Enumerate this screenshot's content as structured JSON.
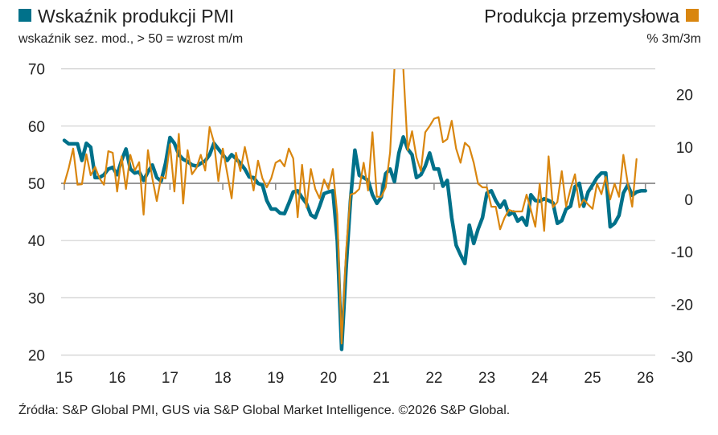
{
  "chart_data": {
    "type": "line",
    "legend_left": {
      "label": "Wskaźnik produkcji PMI",
      "sublabel": "wskaźnik sez. mod., > 50 = wzrost m/m"
    },
    "legend_right": {
      "label": "Produkcja przemysłowa",
      "sublabel": "% 3m/3m"
    },
    "x_ticks": [
      "15",
      "16",
      "17",
      "18",
      "19",
      "20",
      "21",
      "22",
      "23",
      "24",
      "25",
      "26"
    ],
    "x_range": [
      2015,
      2026.25
    ],
    "y_left": {
      "ticks": [
        20,
        30,
        40,
        50,
        60,
        70
      ],
      "range": [
        20,
        70
      ],
      "reference": 50
    },
    "y_right": {
      "ticks": [
        -30,
        -20,
        -10,
        0,
        10,
        20
      ],
      "range": [
        -29.8,
        24.8
      ]
    },
    "grid": true,
    "colors": {
      "pmi": "#00718a",
      "ip": "#d9860f",
      "grid": "#d0d0d0",
      "ref": "#888888"
    },
    "series": [
      {
        "name": "Wskaźnik produkcji PMI",
        "axis": "left",
        "start": "2015-01",
        "frequency": "monthly",
        "values": [
          57.5,
          56.9,
          56.9,
          56.9,
          54,
          57,
          56.3,
          51,
          51,
          51.5,
          52.5,
          52.8,
          51.5,
          54,
          56,
          52.5,
          51.8,
          52,
          50.5,
          52,
          53.2,
          51,
          50.4,
          53.5,
          58,
          57,
          55,
          54.2,
          53.8,
          53.2,
          53,
          53.5,
          53.9,
          55,
          57,
          56,
          55,
          54,
          55,
          54.3,
          53.5,
          52.5,
          51.1,
          51,
          50,
          49.7,
          47,
          45.5,
          45.5,
          44.8,
          44.7,
          46.5,
          48.5,
          48.7,
          47.5,
          46.5,
          44.5,
          44,
          46,
          48.2,
          48.5,
          48.7,
          40,
          21,
          35,
          47,
          55.8,
          51.4,
          51,
          50.5,
          48,
          46.5,
          47.6,
          51.7,
          52.5,
          50.3,
          55.3,
          58.1,
          56,
          55,
          51,
          51.5,
          53,
          55.3,
          52.5,
          52.5,
          49.5,
          50.5,
          44,
          39.2,
          37.5,
          36,
          42.7,
          39.5,
          42,
          44,
          48.3,
          48.7,
          47,
          45.8,
          46.9,
          44.5,
          45,
          43.4,
          44,
          42.7,
          48,
          47,
          46.9,
          47.3,
          47,
          46.6,
          43,
          43.5,
          45.5,
          46,
          49.4,
          50,
          46,
          48.5,
          49.7,
          51,
          51.8,
          51.8,
          42.4,
          43,
          44.4,
          48.3,
          49.7,
          47.9,
          48.5,
          48.7,
          48.7
        ]
      },
      {
        "name": "Produkcja przemysłowa",
        "axis": "right",
        "start": "2015-01",
        "frequency": "monthly",
        "values": [
          3,
          6,
          9.7,
          2.8,
          2.9,
          8.6,
          4.6,
          6.2,
          4,
          2.8,
          9.2,
          8.9,
          1.5,
          8.2,
          2,
          8.5,
          5.5,
          7.1,
          -2.9,
          9.4,
          4,
          -0.3,
          4.3,
          4,
          10.5,
          1.5,
          12.5,
          -0.8,
          9.4,
          4.8,
          6,
          8.5,
          5.5,
          13.8,
          10.9,
          3.5,
          9.7,
          5,
          0.2,
          8.9,
          5.4,
          10,
          6,
          1.7,
          7.4,
          4,
          2.3,
          4,
          7,
          7.5,
          6.3,
          9.7,
          7.8,
          -3.4,
          6.6,
          -1.5,
          5.8,
          2,
          0.2,
          3.8,
          2,
          5.8,
          -2.9,
          -27.5,
          -10,
          0.9,
          1.2,
          2,
          7,
          1.7,
          12.8,
          0.5,
          0.5,
          2.3,
          9,
          25,
          45,
          25,
          9.4,
          13,
          8,
          5.4,
          12.8,
          14,
          15.4,
          15.7,
          10.9,
          11.5,
          15,
          9.7,
          7,
          10.8,
          10,
          7,
          3,
          2.3,
          2.3,
          -1.4,
          -1.4,
          -5.7,
          -3.5,
          -2,
          -2.3,
          -2.3,
          -2.3,
          0.9,
          -2,
          -5.2,
          3,
          -6,
          8.2,
          -1.5,
          -0.5,
          5.4,
          -1.4,
          2,
          4.8,
          -1.5,
          0,
          -1,
          -1.8,
          3,
          1,
          4.3,
          0,
          3,
          0.5,
          8.5,
          3,
          -1.4,
          7.7
        ]
      }
    ],
    "source": "Źródła: S&P Global PMI, GUS via S&P Global Market Intelligence. ©2026 S&P Global."
  }
}
